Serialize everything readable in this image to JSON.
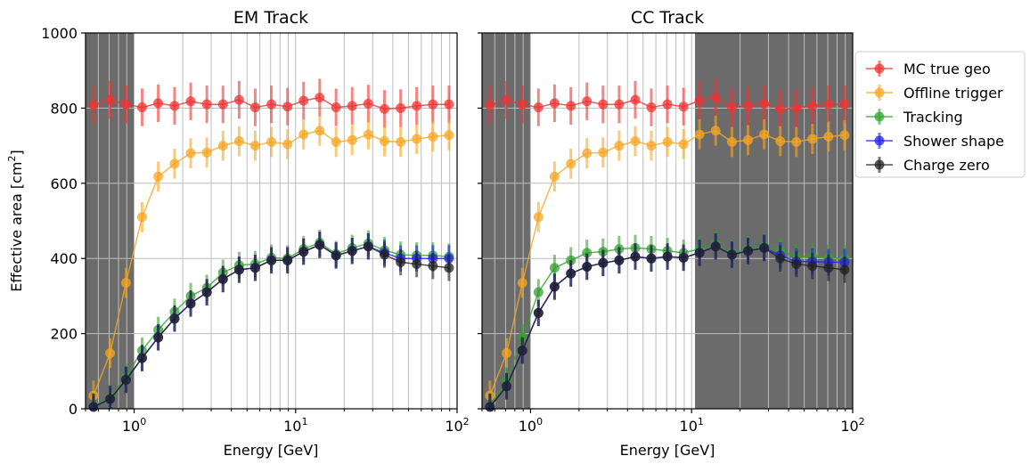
{
  "figure": {
    "ylabel_main": "Effective area [cm",
    "ylabel_sup": "2",
    "ylabel_end": "]"
  },
  "legend": {
    "placement": "right, outside plots",
    "entries": [
      {
        "name": "MC true geo",
        "color": "#ee3333"
      },
      {
        "name": "Offline trigger",
        "color": "#f5a623"
      },
      {
        "name": "Tracking",
        "color": "#33a02c"
      },
      {
        "name": "Shower shape",
        "color": "#2222ee"
      },
      {
        "name": "Charge zero",
        "color": "#222222"
      }
    ]
  },
  "chart_data": [
    {
      "type": "line",
      "title": "EM Track",
      "xlabel": "Energy [GeV]",
      "ylabel": "Effective area [cm²]",
      "xscale": "log",
      "xlim": [
        0.5,
        100
      ],
      "ylim": [
        0,
        1000
      ],
      "yticks": [
        "0",
        "200",
        "400",
        "600",
        "800",
        "1000"
      ],
      "xticks": [
        {
          "base": "10",
          "exp": "0",
          "value": 1
        },
        {
          "base": "10",
          "exp": "1",
          "value": 10
        },
        {
          "base": "10",
          "exp": "2",
          "value": 100
        }
      ],
      "grid": true,
      "shaded_x_ranges": [
        [
          0.5,
          1.0
        ]
      ],
      "x": [
        0.56,
        0.71,
        0.89,
        1.12,
        1.41,
        1.78,
        2.24,
        2.82,
        3.55,
        4.47,
        5.62,
        7.08,
        8.91,
        11.2,
        14.1,
        17.8,
        22.4,
        28.2,
        35.5,
        44.7,
        56.2,
        70.8,
        89.1
      ],
      "series": [
        {
          "name": "MC true geo",
          "color": "#ee3333",
          "err": 50,
          "values": [
            808,
            822,
            810,
            802,
            813,
            806,
            818,
            810,
            810,
            822,
            802,
            810,
            804,
            820,
            828,
            802,
            806,
            812,
            798,
            800,
            806,
            810,
            810
          ]
        },
        {
          "name": "Offline trigger",
          "color": "#f5a623",
          "err": 40,
          "values": [
            35,
            148,
            335,
            510,
            618,
            652,
            680,
            682,
            700,
            712,
            700,
            710,
            704,
            730,
            740,
            710,
            715,
            730,
            712,
            710,
            718,
            724,
            728
          ]
        },
        {
          "name": "Tracking",
          "color": "#33a02c",
          "err": 35,
          "values": [
            8,
            30,
            85,
            155,
            210,
            258,
            300,
            322,
            362,
            382,
            385,
            402,
            400,
            425,
            442,
            412,
            428,
            440,
            422,
            410,
            408,
            408,
            405
          ]
        },
        {
          "name": "Shower shape",
          "color": "#2222ee",
          "err": 35,
          "values": [
            5,
            26,
            77,
            135,
            190,
            240,
            280,
            310,
            345,
            370,
            375,
            395,
            395,
            418,
            436,
            408,
            420,
            432,
            415,
            400,
            400,
            400,
            400
          ]
        },
        {
          "name": "Charge zero",
          "color": "#222222",
          "err": 35,
          "values": [
            5,
            26,
            77,
            135,
            190,
            240,
            280,
            310,
            345,
            370,
            375,
            395,
            395,
            418,
            436,
            408,
            420,
            432,
            410,
            390,
            385,
            380,
            375
          ]
        }
      ]
    },
    {
      "type": "line",
      "title": "CC Track",
      "xlabel": "Energy [GeV]",
      "ylabel": "",
      "xscale": "log",
      "xlim": [
        0.5,
        100
      ],
      "ylim": [
        0,
        1000
      ],
      "yticks": [
        "",
        "",
        "",
        "",
        "",
        ""
      ],
      "xticks": [
        {
          "base": "10",
          "exp": "0",
          "value": 1
        },
        {
          "base": "10",
          "exp": "1",
          "value": 10
        },
        {
          "base": "10",
          "exp": "2",
          "value": 100
        }
      ],
      "grid": true,
      "shaded_x_ranges": [
        [
          0.5,
          1.0
        ],
        [
          10.5,
          100
        ]
      ],
      "x": [
        0.56,
        0.71,
        0.89,
        1.12,
        1.41,
        1.78,
        2.24,
        2.82,
        3.55,
        4.47,
        5.62,
        7.08,
        8.91,
        11.2,
        14.1,
        17.8,
        22.4,
        28.2,
        35.5,
        44.7,
        56.2,
        70.8,
        89.1
      ],
      "series": [
        {
          "name": "MC true geo",
          "color": "#ee3333",
          "err": 50,
          "values": [
            808,
            822,
            810,
            802,
            813,
            806,
            818,
            810,
            810,
            822,
            802,
            810,
            804,
            820,
            828,
            802,
            806,
            812,
            798,
            800,
            806,
            810,
            810
          ]
        },
        {
          "name": "Offline trigger",
          "color": "#f5a623",
          "err": 40,
          "values": [
            35,
            148,
            335,
            510,
            618,
            652,
            680,
            682,
            700,
            712,
            700,
            710,
            704,
            730,
            740,
            710,
            715,
            730,
            712,
            710,
            718,
            724,
            728
          ]
        },
        {
          "name": "Tracking",
          "color": "#33a02c",
          "err": 35,
          "values": [
            8,
            75,
            190,
            310,
            375,
            395,
            415,
            418,
            425,
            428,
            425,
            420,
            415,
            425,
            440,
            415,
            425,
            432,
            420,
            405,
            405,
            402,
            400
          ]
        },
        {
          "name": "Shower shape",
          "color": "#2222ee",
          "err": 35,
          "values": [
            5,
            60,
            155,
            255,
            325,
            360,
            378,
            388,
            395,
            405,
            400,
            405,
            402,
            415,
            432,
            410,
            420,
            428,
            408,
            392,
            392,
            390,
            390
          ]
        },
        {
          "name": "Charge zero",
          "color": "#222222",
          "err": 35,
          "values": [
            5,
            60,
            155,
            255,
            325,
            360,
            378,
            388,
            395,
            405,
            400,
            405,
            402,
            415,
            432,
            410,
            420,
            428,
            400,
            385,
            380,
            375,
            370
          ]
        }
      ]
    }
  ]
}
